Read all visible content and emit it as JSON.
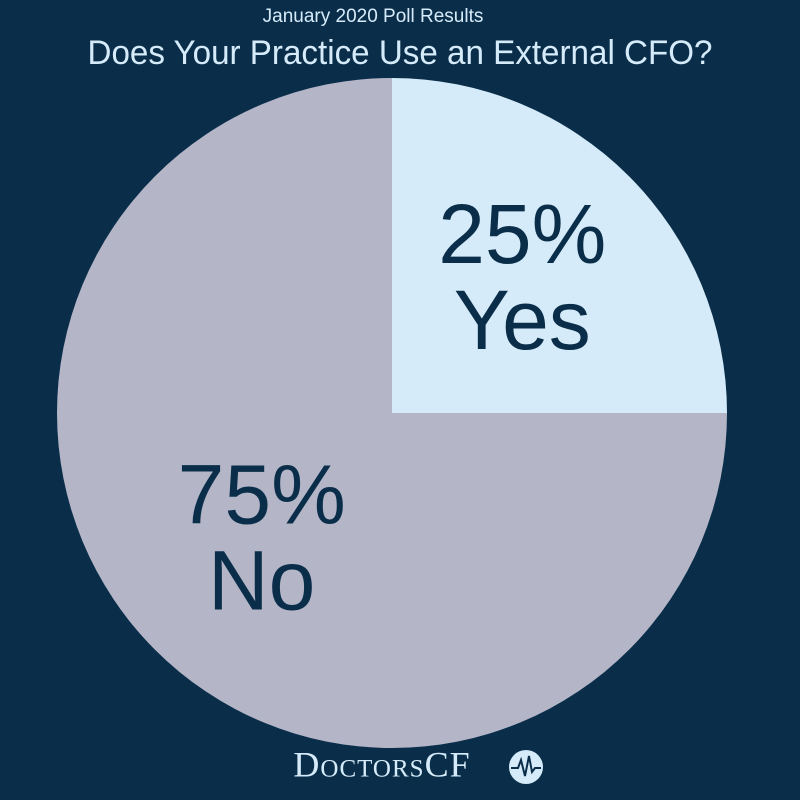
{
  "chart_data": {
    "type": "pie",
    "subtitle": "January 2020 Poll Results",
    "title": "Does Your Practice Use an External CFO?",
    "categories": [
      "Yes",
      "No"
    ],
    "values": [
      25,
      75
    ],
    "value_labels": [
      "25%",
      "75%"
    ],
    "colors": [
      "#d6ebf9",
      "#b5b5c8"
    ],
    "logo": "DoctorsCF"
  }
}
